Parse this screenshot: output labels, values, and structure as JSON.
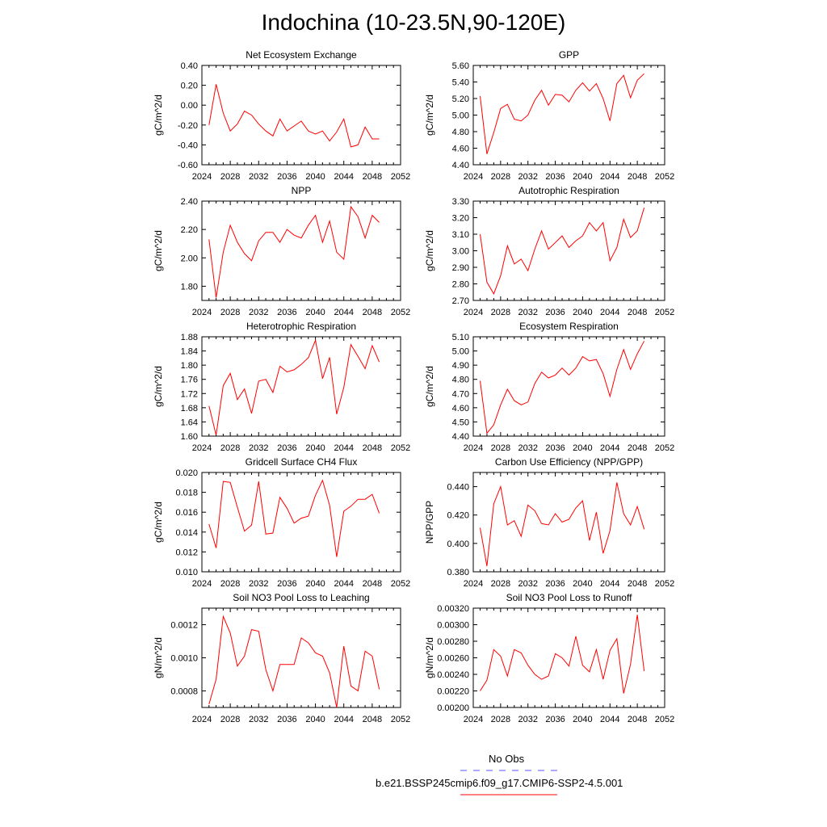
{
  "title": "Indochina (10-23.5N,90-120E)",
  "legend": {
    "obs_label": "No Obs",
    "obs_color": "#5555ff",
    "model_label": "b.e21.BSSP245cmip6.f09_g17.CMIP6-SSP2-4.5.001",
    "model_color": "#ff0000"
  },
  "chart_data": [
    {
      "type": "line",
      "title": "Net Ecosystem Exchange",
      "ylabel": "gC/m^2/d",
      "xlim": [
        2024,
        2052
      ],
      "xticks": [
        "2024",
        "2028",
        "2032",
        "2036",
        "2040",
        "2044",
        "2048",
        "2052"
      ],
      "ylim": [
        -0.6,
        0.4
      ],
      "yticks": [
        "-0.60",
        "-0.40",
        "-0.20",
        "0.00",
        "0.20",
        "0.40"
      ],
      "x": [
        2025,
        2026,
        2027,
        2028,
        2029,
        2030,
        2031,
        2032,
        2033,
        2034,
        2035,
        2036,
        2037,
        2038,
        2039,
        2040,
        2041,
        2042,
        2043,
        2044,
        2045,
        2046,
        2047,
        2048,
        2049
      ],
      "series": [
        {
          "values": [
            -0.2,
            0.21,
            -0.08,
            -0.26,
            -0.19,
            -0.06,
            -0.1,
            -0.19,
            -0.26,
            -0.31,
            -0.14,
            -0.26,
            -0.21,
            -0.16,
            -0.26,
            -0.29,
            -0.26,
            -0.36,
            -0.27,
            -0.14,
            -0.42,
            -0.4,
            -0.22,
            -0.34,
            -0.34
          ]
        }
      ]
    },
    {
      "type": "line",
      "title": "GPP",
      "ylabel": "gC/m^2/d",
      "xlim": [
        2024,
        2052
      ],
      "xticks": [
        "2024",
        "2028",
        "2032",
        "2036",
        "2040",
        "2044",
        "2048",
        "2052"
      ],
      "ylim": [
        4.4,
        5.6
      ],
      "yticks": [
        "4.40",
        "4.60",
        "4.80",
        "5.00",
        "5.20",
        "5.40",
        "5.60"
      ],
      "x": [
        2025,
        2026,
        2027,
        2028,
        2029,
        2030,
        2031,
        2032,
        2033,
        2034,
        2035,
        2036,
        2037,
        2038,
        2039,
        2040,
        2041,
        2042,
        2043,
        2044,
        2045,
        2046,
        2047,
        2048,
        2049
      ],
      "series": [
        {
          "values": [
            5.23,
            4.53,
            4.79,
            5.08,
            5.13,
            4.95,
            4.93,
            5.0,
            5.18,
            5.3,
            5.12,
            5.25,
            5.24,
            5.16,
            5.3,
            5.39,
            5.29,
            5.38,
            5.2,
            4.93,
            5.38,
            5.48,
            5.21,
            5.42,
            5.5
          ]
        }
      ]
    },
    {
      "type": "line",
      "title": "NPP",
      "ylabel": "gC/m^2/d",
      "xlim": [
        2024,
        2052
      ],
      "xticks": [
        "2024",
        "2028",
        "2032",
        "2036",
        "2040",
        "2044",
        "2048",
        "2052"
      ],
      "ylim": [
        1.7,
        2.4
      ],
      "yticks": [
        "1.80",
        "2.00",
        "2.20",
        "2.40"
      ],
      "x": [
        2025,
        2026,
        2027,
        2028,
        2029,
        2030,
        2031,
        2032,
        2033,
        2034,
        2035,
        2036,
        2037,
        2038,
        2039,
        2040,
        2041,
        2042,
        2043,
        2044,
        2045,
        2046,
        2047,
        2048,
        2049
      ],
      "series": [
        {
          "values": [
            2.13,
            1.72,
            2.04,
            2.23,
            2.11,
            2.03,
            1.98,
            2.12,
            2.18,
            2.18,
            2.11,
            2.2,
            2.16,
            2.14,
            2.23,
            2.3,
            2.11,
            2.26,
            2.04,
            1.99,
            2.36,
            2.29,
            2.14,
            2.3,
            2.25
          ]
        }
      ]
    },
    {
      "type": "line",
      "title": "Autotrophic Respiration",
      "ylabel": "gC/m^2/d",
      "xlim": [
        2024,
        2052
      ],
      "xticks": [
        "2024",
        "2028",
        "2032",
        "2036",
        "2040",
        "2044",
        "2048",
        "2052"
      ],
      "ylim": [
        2.7,
        3.3
      ],
      "yticks": [
        "2.70",
        "2.80",
        "2.90",
        "3.00",
        "3.10",
        "3.20",
        "3.30"
      ],
      "x": [
        2025,
        2026,
        2027,
        2028,
        2029,
        2030,
        2031,
        2032,
        2033,
        2034,
        2035,
        2036,
        2037,
        2038,
        2039,
        2040,
        2041,
        2042,
        2043,
        2044,
        2045,
        2046,
        2047,
        2048,
        2049
      ],
      "series": [
        {
          "values": [
            3.1,
            2.81,
            2.74,
            2.85,
            3.03,
            2.92,
            2.95,
            2.88,
            3.01,
            3.12,
            3.01,
            3.05,
            3.09,
            3.02,
            3.06,
            3.09,
            3.17,
            3.12,
            3.17,
            2.94,
            3.02,
            3.19,
            3.08,
            3.12,
            3.26
          ]
        }
      ]
    },
    {
      "type": "line",
      "title": "Heterotrophic Respiration",
      "ylabel": "gC/m^2/d",
      "xlim": [
        2024,
        2052
      ],
      "xticks": [
        "2024",
        "2028",
        "2032",
        "2036",
        "2040",
        "2044",
        "2048",
        "2052"
      ],
      "ylim": [
        1.6,
        1.88
      ],
      "yticks": [
        "1.60",
        "1.64",
        "1.68",
        "1.72",
        "1.76",
        "1.80",
        "1.84",
        "1.88"
      ],
      "x": [
        2025,
        2026,
        2027,
        2028,
        2029,
        2030,
        2031,
        2032,
        2033,
        2034,
        2035,
        2036,
        2037,
        2038,
        2039,
        2040,
        2041,
        2042,
        2043,
        2044,
        2045,
        2046,
        2047,
        2048,
        2049
      ],
      "series": [
        {
          "values": [
            1.685,
            1.603,
            1.742,
            1.777,
            1.703,
            1.733,
            1.664,
            1.755,
            1.76,
            1.723,
            1.797,
            1.781,
            1.787,
            1.802,
            1.821,
            1.87,
            1.762,
            1.822,
            1.662,
            1.737,
            1.858,
            1.825,
            1.79,
            1.855,
            1.809
          ]
        }
      ]
    },
    {
      "type": "line",
      "title": "Ecosystem Respiration",
      "ylabel": "gC/m^2/d",
      "xlim": [
        2024,
        2052
      ],
      "xticks": [
        "2024",
        "2028",
        "2032",
        "2036",
        "2040",
        "2044",
        "2048",
        "2052"
      ],
      "ylim": [
        4.4,
        5.1
      ],
      "yticks": [
        "4.40",
        "4.50",
        "4.60",
        "4.70",
        "4.80",
        "4.90",
        "5.00",
        "5.10"
      ],
      "x": [
        2025,
        2026,
        2027,
        2028,
        2029,
        2030,
        2031,
        2032,
        2033,
        2034,
        2035,
        2036,
        2037,
        2038,
        2039,
        2040,
        2041,
        2042,
        2043,
        2044,
        2045,
        2046,
        2047,
        2048,
        2049
      ],
      "series": [
        {
          "values": [
            4.79,
            4.42,
            4.48,
            4.62,
            4.73,
            4.65,
            4.62,
            4.64,
            4.77,
            4.85,
            4.81,
            4.83,
            4.88,
            4.83,
            4.88,
            4.96,
            4.93,
            4.94,
            4.84,
            4.68,
            4.87,
            5.01,
            4.87,
            4.98,
            5.07
          ]
        }
      ]
    },
    {
      "type": "line",
      "title": "Gridcell Surface CH4 Flux",
      "ylabel": "gC/m^2/d",
      "xlim": [
        2024,
        2052
      ],
      "xticks": [
        "2024",
        "2028",
        "2032",
        "2036",
        "2040",
        "2044",
        "2048",
        "2052"
      ],
      "ylim": [
        0.01,
        0.02
      ],
      "yticks": [
        "0.010",
        "0.012",
        "0.014",
        "0.016",
        "0.018",
        "0.020"
      ],
      "x": [
        2025,
        2026,
        2027,
        2028,
        2029,
        2030,
        2031,
        2032,
        2033,
        2034,
        2035,
        2036,
        2037,
        2038,
        2039,
        2040,
        2041,
        2042,
        2043,
        2044,
        2045,
        2046,
        2047,
        2048,
        2049
      ],
      "series": [
        {
          "values": [
            0.0148,
            0.0124,
            0.0191,
            0.019,
            0.0165,
            0.0141,
            0.0147,
            0.0191,
            0.0138,
            0.0139,
            0.0175,
            0.0164,
            0.0149,
            0.0154,
            0.0156,
            0.0177,
            0.0192,
            0.0167,
            0.0115,
            0.0161,
            0.0166,
            0.0173,
            0.0173,
            0.0178,
            0.0159
          ]
        }
      ]
    },
    {
      "type": "line",
      "title": "Carbon Use Efficiency (NPP/GPP)",
      "ylabel": "NPP/GPP",
      "xlim": [
        2024,
        2052
      ],
      "xticks": [
        "2024",
        "2028",
        "2032",
        "2036",
        "2040",
        "2044",
        "2048",
        "2052"
      ],
      "ylim": [
        0.38,
        0.45
      ],
      "yticks": [
        "0.380",
        "0.400",
        "0.420",
        "0.440"
      ],
      "x": [
        2025,
        2026,
        2027,
        2028,
        2029,
        2030,
        2031,
        2032,
        2033,
        2034,
        2035,
        2036,
        2037,
        2038,
        2039,
        2040,
        2041,
        2042,
        2043,
        2044,
        2045,
        2046,
        2047,
        2048,
        2049
      ],
      "series": [
        {
          "values": [
            0.411,
            0.384,
            0.428,
            0.44,
            0.413,
            0.416,
            0.405,
            0.427,
            0.423,
            0.414,
            0.413,
            0.421,
            0.415,
            0.417,
            0.425,
            0.43,
            0.402,
            0.422,
            0.393,
            0.409,
            0.443,
            0.421,
            0.413,
            0.426,
            0.41
          ]
        }
      ]
    },
    {
      "type": "line",
      "title": "Soil NO3 Pool Loss to Leaching",
      "ylabel": "gN/m^2/d",
      "xlim": [
        2024,
        2052
      ],
      "xticks": [
        "2024",
        "2028",
        "2032",
        "2036",
        "2040",
        "2044",
        "2048",
        "2052"
      ],
      "ylim": [
        0.0007,
        0.0013
      ],
      "yticks": [
        "0.0008",
        "0.0010",
        "0.0012"
      ],
      "x": [
        2025,
        2026,
        2027,
        2028,
        2029,
        2030,
        2031,
        2032,
        2033,
        2034,
        2035,
        2036,
        2037,
        2038,
        2039,
        2040,
        2041,
        2042,
        2043,
        2044,
        2045,
        2046,
        2047,
        2048,
        2049
      ],
      "series": [
        {
          "values": [
            0.00072,
            0.00087,
            0.00125,
            0.00115,
            0.00095,
            0.00101,
            0.00117,
            0.00116,
            0.00093,
            0.0008,
            0.00096,
            0.00096,
            0.00096,
            0.00112,
            0.00109,
            0.00103,
            0.00101,
            0.00091,
            0.0007,
            0.00107,
            0.00083,
            0.0008,
            0.00104,
            0.00101,
            0.00081
          ]
        }
      ]
    },
    {
      "type": "line",
      "title": "Soil NO3 Pool Loss to Runoff",
      "ylabel": "gN/m^2/d",
      "xlim": [
        2024,
        2052
      ],
      "xticks": [
        "2024",
        "2028",
        "2032",
        "2036",
        "2040",
        "2044",
        "2048",
        "2052"
      ],
      "ylim": [
        0.002,
        0.0032
      ],
      "yticks": [
        "0.00200",
        "0.00220",
        "0.00240",
        "0.00260",
        "0.00280",
        "0.00300",
        "0.00320"
      ],
      "x": [
        2025,
        2026,
        2027,
        2028,
        2029,
        2030,
        2031,
        2032,
        2033,
        2034,
        2035,
        2036,
        2037,
        2038,
        2039,
        2040,
        2041,
        2042,
        2043,
        2044,
        2045,
        2046,
        2047,
        2048,
        2049
      ],
      "series": [
        {
          "values": [
            0.0022,
            0.00233,
            0.0027,
            0.00262,
            0.00238,
            0.0027,
            0.00266,
            0.00251,
            0.0024,
            0.00234,
            0.00238,
            0.00265,
            0.0026,
            0.0025,
            0.00286,
            0.00251,
            0.00243,
            0.0027,
            0.00234,
            0.00269,
            0.00283,
            0.00217,
            0.00252,
            0.00312,
            0.00244
          ]
        }
      ]
    }
  ]
}
